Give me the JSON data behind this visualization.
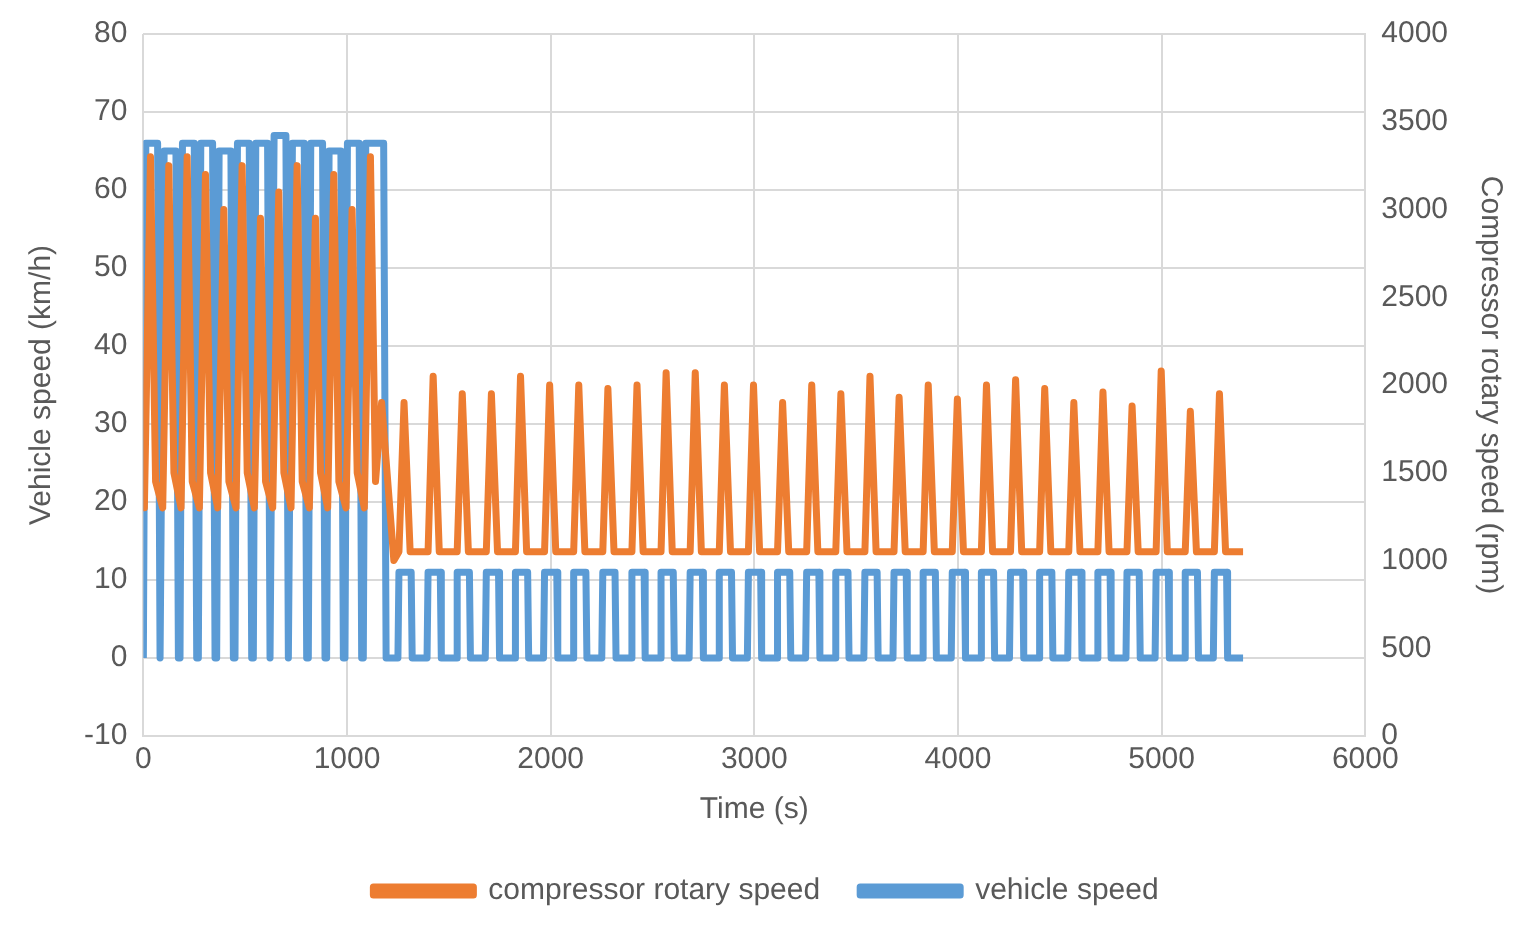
{
  "chart_data": {
    "type": "line",
    "xlabel": "Time (s)",
    "ylabel": "Vehicle speed (km/h)",
    "y2label": "Compressor rotary speed (rpm)",
    "xlim": [
      0,
      6000
    ],
    "xticks": [
      0,
      1000,
      2000,
      3000,
      4000,
      5000,
      6000
    ],
    "ylim": [
      -10,
      80
    ],
    "yticks": [
      -10,
      0,
      10,
      20,
      30,
      40,
      50,
      60,
      70,
      80
    ],
    "y2lim": [
      0,
      4000
    ],
    "y2ticks": [
      0,
      500,
      1000,
      1500,
      2000,
      2500,
      3000,
      3500,
      4000
    ],
    "grid": true,
    "legend": "bottom",
    "marker": "none",
    "line_style": "solid",
    "series": [
      {
        "name": "vehicle speed",
        "color": "#5b9bd5",
        "x": [
          0,
          12,
          70,
          82,
          90,
          102,
          160,
          172,
          180,
          192,
          250,
          262,
          270,
          282,
          340,
          352,
          360,
          372,
          430,
          442,
          450,
          462,
          520,
          532,
          540,
          552,
          610,
          622,
          630,
          642,
          700,
          712,
          720,
          732,
          790,
          802,
          810,
          822,
          880,
          892,
          900,
          912,
          970,
          982,
          990,
          1002,
          1060,
          1072,
          1080,
          1092,
          1180,
          1192,
          1250,
          1255,
          1315,
          1320,
          1393,
          1398,
          1458,
          1463,
          1536,
          1541,
          1601,
          1606,
          1679,
          1684,
          1744,
          1749,
          1822,
          1827,
          1887,
          1892,
          1965,
          1970,
          2030,
          2035,
          2108,
          2113,
          2173,
          2178,
          2251,
          2256,
          2316,
          2321,
          2394,
          2399,
          2459,
          2464,
          2537,
          2542,
          2602,
          2607,
          2680,
          2685,
          2745,
          2750,
          2823,
          2828,
          2888,
          2893,
          2966,
          2971,
          3031,
          3036,
          3109,
          3114,
          3174,
          3179,
          3252,
          3257,
          3317,
          3322,
          3395,
          3400,
          3460,
          3465,
          3538,
          3543,
          3603,
          3608,
          3681,
          3686,
          3746,
          3751,
          3824,
          3829,
          3889,
          3894,
          3967,
          3972,
          4032,
          4037,
          4110,
          4115,
          4175,
          4180,
          4253,
          4258,
          4318,
          4323,
          4396,
          4401,
          4461,
          4466,
          4539,
          4544,
          4604,
          4609,
          4682,
          4687,
          4747,
          4752,
          4825,
          4830,
          4890,
          4895,
          4968,
          4973,
          5033,
          5038,
          5111,
          5116,
          5176,
          5181,
          5254,
          5259,
          5319,
          5324,
          5400
        ],
        "values": [
          0,
          66,
          66,
          0,
          0,
          65,
          65,
          0,
          0,
          66,
          66,
          0,
          0,
          66,
          66,
          0,
          0,
          65,
          65,
          0,
          0,
          66,
          66,
          0,
          0,
          66,
          66,
          0,
          0,
          67,
          67,
          0,
          0,
          66,
          66,
          0,
          0,
          66,
          66,
          0,
          0,
          65,
          65,
          0,
          0,
          66,
          66,
          0,
          0,
          66,
          66,
          0,
          0,
          11,
          11,
          0,
          0,
          11,
          11,
          0,
          0,
          11,
          11,
          0,
          0,
          11,
          11,
          0,
          0,
          11,
          11,
          0,
          0,
          11,
          11,
          0,
          0,
          11,
          11,
          0,
          0,
          11,
          11,
          0,
          0,
          11,
          11,
          0,
          0,
          11,
          11,
          0,
          0,
          11,
          11,
          0,
          0,
          11,
          11,
          0,
          0,
          11,
          11,
          0,
          0,
          11,
          11,
          0,
          0,
          11,
          11,
          0,
          0,
          11,
          11,
          0,
          0,
          11,
          11,
          0,
          0,
          11,
          11,
          0,
          0,
          11,
          11,
          0,
          0,
          11,
          11,
          0,
          0,
          11,
          11,
          0,
          0,
          11,
          11,
          0,
          0,
          11,
          11,
          0,
          0,
          11,
          11,
          0,
          0,
          11,
          11,
          0,
          0,
          11,
          11,
          0,
          0,
          11,
          11,
          0,
          0,
          11,
          11,
          0,
          0,
          11,
          11,
          0,
          0
        ]
      },
      {
        "name": "compressor rotary speed",
        "color": "#ed7d31",
        "axis": "y2",
        "x": [
          0,
          5,
          35,
          60,
          95,
          125,
          150,
          185,
          215,
          240,
          275,
          305,
          330,
          365,
          395,
          420,
          455,
          485,
          510,
          545,
          575,
          600,
          635,
          665,
          690,
          725,
          755,
          780,
          815,
          845,
          870,
          905,
          935,
          960,
          995,
          1025,
          1050,
          1085,
          1115,
          1140,
          1170,
          1230,
          1255,
          1280,
          1310,
          1398,
          1423,
          1453,
          1541,
          1566,
          1596,
          1684,
          1709,
          1739,
          1827,
          1852,
          1882,
          1970,
          1995,
          2025,
          2113,
          2138,
          2168,
          2256,
          2281,
          2311,
          2399,
          2424,
          2454,
          2542,
          2567,
          2597,
          2685,
          2710,
          2740,
          2828,
          2853,
          2883,
          2971,
          2996,
          3026,
          3114,
          3139,
          3169,
          3257,
          3282,
          3312,
          3400,
          3425,
          3455,
          3543,
          3568,
          3598,
          3686,
          3711,
          3741,
          3829,
          3854,
          3884,
          3972,
          3997,
          4027,
          4115,
          4140,
          4170,
          4258,
          4283,
          4313,
          4401,
          4426,
          4456,
          4544,
          4569,
          4599,
          4687,
          4712,
          4742,
          4830,
          4855,
          4885,
          4973,
          4998,
          5028,
          5116,
          5141,
          5171,
          5259,
          5284,
          5314,
          5400
        ],
        "values": [
          1400,
          1300,
          3300,
          1450,
          1300,
          3250,
          1500,
          1300,
          3300,
          1450,
          1300,
          3200,
          1500,
          1300,
          3000,
          1450,
          1300,
          3250,
          1500,
          1300,
          2950,
          1450,
          1300,
          3100,
          1500,
          1300,
          3250,
          1450,
          1300,
          2950,
          1500,
          1300,
          3200,
          1450,
          1300,
          3000,
          1500,
          1300,
          3300,
          1450,
          1900,
          1000,
          1050,
          1900,
          1050,
          1050,
          2050,
          1050,
          1050,
          1950,
          1050,
          1050,
          1950,
          1050,
          1050,
          2050,
          1050,
          1050,
          2000,
          1050,
          1050,
          2000,
          1050,
          1050,
          1980,
          1050,
          1050,
          2000,
          1050,
          1050,
          2070,
          1050,
          1050,
          2070,
          1050,
          1050,
          2000,
          1050,
          1050,
          2000,
          1050,
          1050,
          1900,
          1050,
          1050,
          2000,
          1050,
          1050,
          1950,
          1050,
          1050,
          2050,
          1050,
          1050,
          1930,
          1050,
          1050,
          2000,
          1050,
          1050,
          1920,
          1050,
          1050,
          2000,
          1050,
          1050,
          2030,
          1050,
          1050,
          1980,
          1050,
          1050,
          1900,
          1050,
          1050,
          1960,
          1050,
          1050,
          1880,
          1050,
          1050,
          2080,
          1050,
          1050,
          1850,
          1050,
          1050,
          1950,
          1050,
          1050
        ]
      }
    ]
  }
}
